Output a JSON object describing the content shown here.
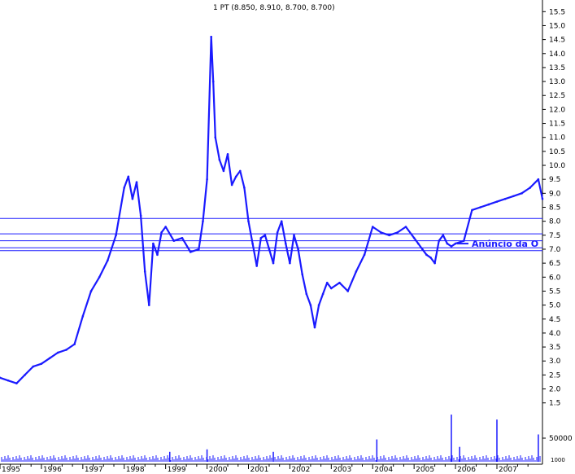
{
  "chart_data": {
    "type": "line",
    "title": "1 PT (8.850, 8.910, 8.700, 8.700)",
    "xlabel": "",
    "ylabel": "",
    "x_tick_labels": [
      "1995",
      "1996",
      "1997",
      "1998",
      "1999",
      "2000",
      "2001",
      "2002",
      "2003",
      "2004",
      "2005",
      "2006",
      "2007"
    ],
    "x_range": [
      1995.0,
      2008.1
    ],
    "y_ticks": [
      1.5,
      2.0,
      2.5,
      3.0,
      3.5,
      4.0,
      4.5,
      5.0,
      5.5,
      6.0,
      6.5,
      7.0,
      7.5,
      8.0,
      8.5,
      9.0,
      9.5,
      10.0,
      10.5,
      11.0,
      11.5,
      12.0,
      12.5,
      13.0,
      13.5,
      14.0,
      14.5,
      15.0,
      15.5
    ],
    "y_tick_labels": [
      "1.5",
      "2.0",
      "2.5",
      "3.0",
      "3.5",
      "4.0",
      "4.5",
      "5.0",
      "5.5",
      "6.0",
      "6.5",
      "7.0",
      "7.5",
      "8.0",
      "8.5",
      "9.0",
      "9.5",
      "10.0",
      "10.5",
      "11.0",
      "11.5",
      "12.0",
      "12.5",
      "13.0",
      "13.5",
      "14.0",
      "14.5",
      "15.0",
      "15.5"
    ],
    "ylim": [
      1.2,
      15.8
    ],
    "grid": false,
    "series": [
      {
        "color": "#1a1aff",
        "x": [
          1995.0,
          1995.2,
          1995.4,
          1995.6,
          1995.8,
          1996.0,
          1996.2,
          1996.4,
          1996.6,
          1996.8,
          1997.0,
          1997.2,
          1997.4,
          1997.6,
          1997.8,
          1998.0,
          1998.1,
          1998.2,
          1998.3,
          1998.4,
          1998.5,
          1998.6,
          1998.7,
          1998.8,
          1998.9,
          1999.0,
          1999.2,
          1999.4,
          1999.6,
          1999.8,
          1999.9,
          2000.0,
          2000.1,
          2000.15,
          2000.2,
          2000.3,
          2000.4,
          2000.5,
          2000.6,
          2000.7,
          2000.8,
          2000.9,
          2001.0,
          2001.1,
          2001.2,
          2001.3,
          2001.4,
          2001.5,
          2001.6,
          2001.7,
          2001.8,
          2001.9,
          2002.0,
          2002.1,
          2002.2,
          2002.3,
          2002.4,
          2002.5,
          2002.6,
          2002.7,
          2002.8,
          2002.9,
          2003.0,
          2003.2,
          2003.4,
          2003.6,
          2003.8,
          2004.0,
          2004.2,
          2004.4,
          2004.6,
          2004.8,
          2005.0,
          2005.1,
          2005.2,
          2005.3,
          2005.4,
          2005.5,
          2005.6,
          2005.7,
          2005.8,
          2005.9,
          2006.0,
          2006.2,
          2006.4,
          2006.6,
          2006.8,
          2007.0,
          2007.2,
          2007.4,
          2007.6,
          2007.8,
          2008.0,
          2008.1
        ],
        "y": [
          2.4,
          2.3,
          2.2,
          2.5,
          2.8,
          2.9,
          3.1,
          3.3,
          3.4,
          3.6,
          4.6,
          5.5,
          6.0,
          6.6,
          7.5,
          9.2,
          9.6,
          8.8,
          9.4,
          8.2,
          6.2,
          5.0,
          7.2,
          6.8,
          7.6,
          7.8,
          7.3,
          7.4,
          6.9,
          7.0,
          8.0,
          9.5,
          14.6,
          13.0,
          11.0,
          10.2,
          9.8,
          10.4,
          9.3,
          9.6,
          9.8,
          9.2,
          8.0,
          7.2,
          6.4,
          7.4,
          7.5,
          7.0,
          6.5,
          7.6,
          8.0,
          7.2,
          6.5,
          7.5,
          7.0,
          6.1,
          5.4,
          5.0,
          4.2,
          5.0,
          5.4,
          5.8,
          5.6,
          5.8,
          5.5,
          6.2,
          6.8,
          7.8,
          7.6,
          7.5,
          7.6,
          7.8,
          7.4,
          7.2,
          7.0,
          6.8,
          6.7,
          6.5,
          7.3,
          7.5,
          7.2,
          7.1,
          7.2,
          7.3,
          8.4,
          8.5,
          8.6,
          8.7,
          8.8,
          8.9,
          9.0,
          9.2,
          9.5,
          8.8
        ]
      }
    ],
    "horizontal_lines": [
      8.1,
      7.55,
      7.3,
      7.05,
      6.95
    ],
    "annotation": {
      "text": "Anúncio da O",
      "y": 7.2
    },
    "volume": {
      "tick_labels": [
        "50000",
        "1000"
      ],
      "spikes": [
        [
          1999.1,
          0.2
        ],
        [
          2000.0,
          0.25
        ],
        [
          2001.6,
          0.2
        ],
        [
          2004.1,
          0.45
        ],
        [
          2005.9,
          0.95
        ],
        [
          2006.1,
          0.3
        ],
        [
          2007.0,
          0.85
        ],
        [
          2008.0,
          0.55
        ]
      ]
    }
  }
}
